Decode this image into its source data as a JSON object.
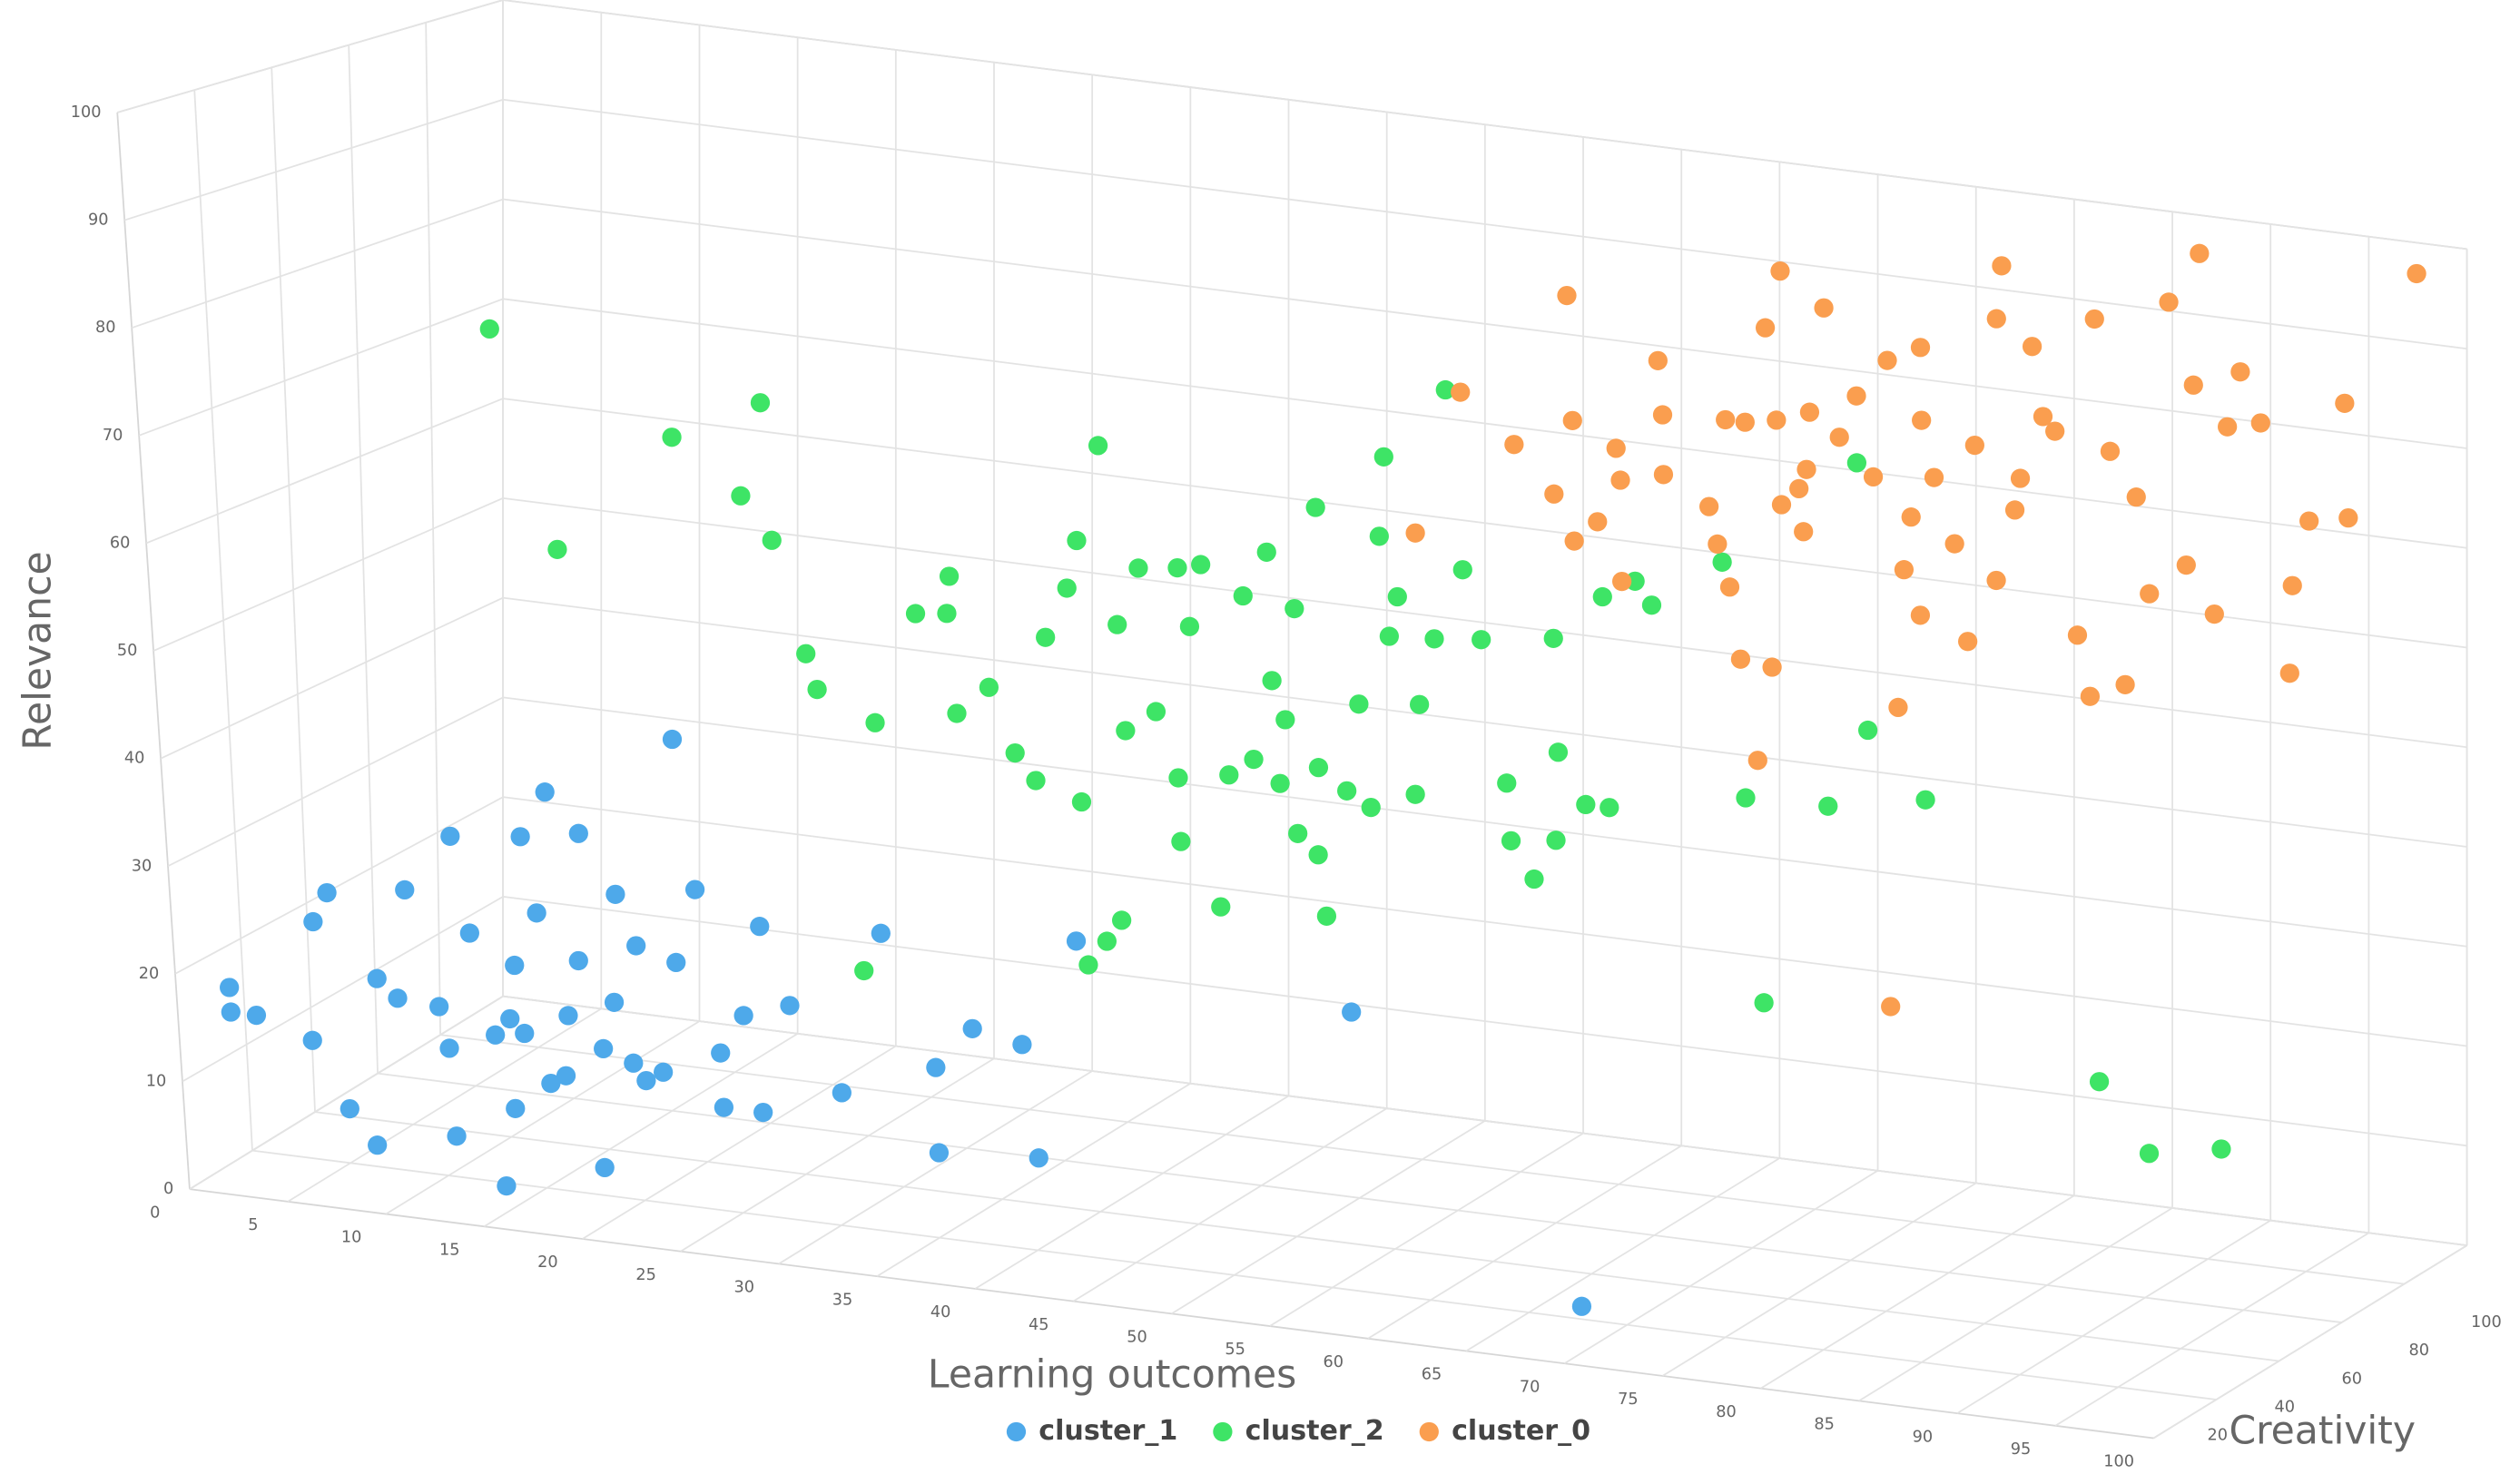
{
  "chart_data": {
    "type": "scatter3d",
    "x_label": "Learning outcomes",
    "y_label": "Relevance",
    "z_label": "Creativity",
    "xlim": [
      0,
      100
    ],
    "ylim": [
      0,
      100
    ],
    "zlim": [
      0,
      100
    ],
    "xticks": [
      0,
      5,
      10,
      15,
      20,
      25,
      30,
      35,
      40,
      45,
      50,
      55,
      60,
      65,
      70,
      75,
      80,
      85,
      90,
      95,
      100
    ],
    "yticks": [
      0,
      10,
      20,
      30,
      40,
      50,
      60,
      70,
      80,
      90,
      100
    ],
    "zticks": [
      20,
      40,
      60,
      80,
      100
    ],
    "grid": true,
    "legend": "bottom",
    "series": [
      {
        "name": "cluster_1",
        "color": "#4ea9ea",
        "x": [
          1,
          1,
          2.3,
          5.1,
          5.5,
          6.3,
          6.8,
          8.1,
          8.6,
          9.6,
          10.3,
          11.7,
          12.2,
          12.8,
          13.5,
          14.6,
          15.3,
          15.7,
          16.4,
          17.8,
          18.3,
          19.4,
          19.7,
          20.7,
          21.1,
          22,
          22.1,
          24.5,
          25.2,
          26,
          27.3,
          28,
          28.4,
          29.7,
          32.1,
          34.6,
          37,
          39,
          41.5,
          42,
          36.9,
          44.6,
          58.5,
          69.4,
          17.2,
          14.5,
          12.1,
          15.3,
          16,
          18,
          20,
          21.5,
          23,
          19,
          17,
          24,
          26
        ],
        "values": [
          17.3,
          15,
          15,
          13.3,
          24.5,
          27.4,
          7.3,
          4.2,
          19.9,
          18.3,
          28.6,
          18,
          6,
          34.2,
          25.3,
          1.9,
          9.3,
          22.8,
          35,
          39.5,
          18.7,
          36,
          4.8,
          20.5,
          30.7,
          26.1,
          13.5,
          46,
          32.1,
          11.9,
          20.8,
          11.9,
          29.4,
          22.3,
          14.7,
          30.2,
          18.2,
          22.3,
          21.4,
          10.9,
          10.2,
          31.8,
          28.4,
          3.4,
          12.1,
          16,
          14.2,
          17.7,
          16.5,
          13,
          16,
          15,
          14.5,
          24,
          28,
          25,
          17
        ],
        "z": [
          10,
          10,
          10,
          10,
          10,
          10,
          10,
          10,
          10,
          10,
          10,
          10,
          10,
          10,
          10,
          10,
          10,
          10,
          10,
          10,
          10,
          10,
          10,
          10,
          10,
          10,
          10,
          10,
          10,
          10,
          10,
          10,
          10,
          10,
          10,
          10,
          10,
          10,
          10,
          10,
          10,
          10,
          10,
          10,
          10,
          10,
          10,
          10,
          10,
          10,
          10,
          10,
          10,
          10,
          10,
          10,
          10
        ]
      },
      {
        "name": "cluster_2",
        "color": "#3ee466",
        "x": [
          10.6,
          13.6,
          19.7,
          23.1,
          24.3,
          24.6,
          26.1,
          26.6,
          28.4,
          29.5,
          31.8,
          33.4,
          33.6,
          33.7,
          35.4,
          36.6,
          37.6,
          38.4,
          39.6,
          39.9,
          39.9,
          40.2,
          40.9,
          41.5,
          41.7,
          42.1,
          42.3,
          43.3,
          43.9,
          44.9,
          44.9,
          45.3,
          45.8,
          46.5,
          46.8,
          47.5,
          48.6,
          48.8,
          49.9,
          49.9,
          50.1,
          50.5,
          50.9,
          51.2,
          51.9,
          52.2,
          52.1,
          52.5,
          53.5,
          54.3,
          54.7,
          55.7,
          56,
          56.1,
          56.5,
          57,
          57.4,
          58.3,
          59.4,
          59.9,
          60.7,
          61.7,
          61.8,
          62.9,
          64.1,
          64.4,
          64.4,
          65.7,
          66.9,
          67,
          68.7,
          69.5,
          73.2,
          73.9,
          74.4,
          78.1,
          80.3,
          80.3,
          83.1,
          91.4,
          93.8,
          97.5
        ],
        "values": [
          77.5,
          57.1,
          69.3,
          64.5,
          73.7,
          60.6,
          50.1,
          46.8,
          20.3,
          44.3,
          55.3,
          55.7,
          59.3,
          46.2,
          49.1,
          43.1,
          40.7,
          54.6,
          59.6,
          39.2,
          23.6,
          64.3,
          26.1,
          73.7,
          28.3,
          56.7,
          46.6,
          62.4,
          48.8,
          42.7,
          36.6,
          62.9,
          57.4,
          63.5,
          30.8,
          43.6,
          61,
          45.4,
          65.5,
          53.2,
          43.4,
          49.6,
          38.8,
          60.4,
          37,
          31.2,
          45.4,
          70.4,
          43.5,
          52,
          42.2,
          68.4,
          58.9,
          76.1,
          62.8,
          44,
          52.7,
          59.2,
          83.3,
          66.2,
          59.7,
          46.2,
          40.7,
          37.3,
          41.3,
          60.7,
          49.8,
          45.1,
          45.1,
          65.3,
          67.2,
          65.1,
          70.1,
          47.7,
          28.2,
          47.9,
          55.7,
          81.3,
          49.7,
          24.7,
          18.4,
          19.7
        ],
        "z": [
          40,
          40,
          40,
          40,
          40,
          40,
          40,
          40,
          40,
          40,
          40,
          40,
          40,
          40,
          40,
          40,
          40,
          40,
          40,
          40,
          40,
          40,
          40,
          40,
          40,
          40,
          40,
          40,
          40,
          40,
          40,
          40,
          40,
          40,
          40,
          40,
          40,
          40,
          40,
          40,
          40,
          40,
          40,
          40,
          40,
          40,
          40,
          40,
          40,
          40,
          40,
          40,
          40,
          40,
          40,
          40,
          40,
          40,
          40,
          40,
          40,
          40,
          40,
          40,
          40,
          40,
          40,
          40,
          40,
          40,
          40,
          40,
          40,
          40,
          40,
          40,
          40,
          40,
          40,
          40,
          40,
          40
        ]
      },
      {
        "name": "cluster_0",
        "color": "#fa9e4f",
        "x": [
          52.5,
          50.1,
          55.2,
          57.2,
          58,
          58.2,
          58.2,
          59.4,
          60.4,
          60.6,
          60.6,
          62.6,
          62.8,
          62.8,
          65.1,
          65.5,
          66,
          66.1,
          66.6,
          67,
          67.4,
          68.1,
          68.2,
          68.6,
          68.8,
          68.9,
          69.7,
          69.9,
          70.1,
          70.3,
          71.1,
          71.8,
          72.7,
          73.5,
          74,
          74.3,
          74.6,
          75,
          75.4,
          75.8,
          76,
          76,
          76.6,
          77.6,
          78.2,
          78.7,
          79.7,
          79.9,
          80.2,
          80.7,
          81,
          81.7,
          82.2,
          82.8,
          83.8,
          84.4,
          84.9,
          85.6,
          86.2,
          86.9,
          87.5,
          88.7,
          89.4,
          89.9,
          90.3,
          90.8,
          91.6,
          92.3,
          93.3,
          94.6,
          94.8,
          95.7,
          97.6,
          97.7,
          99
        ],
        "values": [
          76.4,
          61.9,
          71.9,
          67.5,
          87.3,
          75,
          63.1,
          65.3,
          72.8,
          69.7,
          59.7,
          82,
          76.7,
          70.8,
          68.2,
          64.6,
          77,
          60.5,
          53.5,
          77,
          43.7,
          86.6,
          53.1,
          77.6,
          69.3,
          92.4,
          71.1,
          66.9,
          73.1,
          78.8,
          89.3,
          76.7,
          81,
          73.2,
          21,
          84.9,
          50.7,
          64.4,
          69.7,
          60.1,
          86.6,
          79.4,
          73.9,
          67.6,
          58.1,
          77.6,
          64.5,
          90.4,
          95.7,
          71.7,
          74.9,
          88.1,
          81.3,
          80,
          60.1,
          54.2,
          91.6,
          78.7,
          55.8,
          74.5,
          65.1,
          94.2,
          68.4,
          86.3,
          99.4,
          63.9,
          82.6,
          88.2,
          83.4,
          59,
          67.7,
          74.3,
          86.4,
          75.1,
          98.2
        ],
        "z": [
          80,
          80,
          80,
          80,
          80,
          80,
          80,
          80,
          80,
          80,
          80,
          80,
          80,
          80,
          80,
          80,
          80,
          80,
          80,
          80,
          80,
          80,
          80,
          80,
          80,
          80,
          80,
          80,
          80,
          80,
          80,
          80,
          80,
          80,
          80,
          80,
          80,
          80,
          80,
          80,
          80,
          80,
          80,
          80,
          80,
          80,
          80,
          80,
          80,
          80,
          80,
          80,
          80,
          80,
          80,
          80,
          80,
          80,
          80,
          80,
          80,
          80,
          80,
          80,
          80,
          80,
          80,
          80,
          80,
          80,
          80,
          80,
          80,
          80,
          92
        ]
      }
    ]
  }
}
